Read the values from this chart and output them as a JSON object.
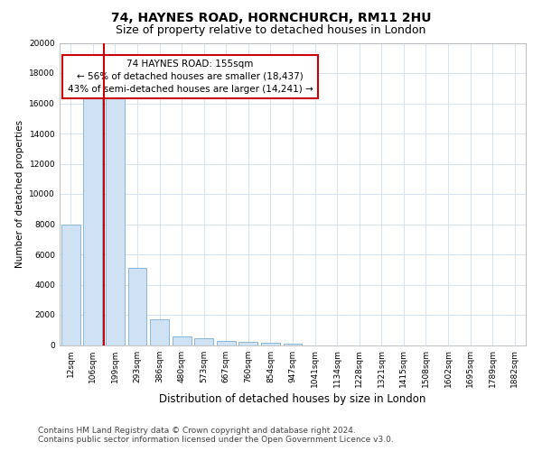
{
  "title1": "74, HAYNES ROAD, HORNCHURCH, RM11 2HU",
  "title2": "Size of property relative to detached houses in London",
  "xlabel": "Distribution of detached houses by size in London",
  "ylabel": "Number of detached properties",
  "categories": [
    "12sqm",
    "106sqm",
    "199sqm",
    "293sqm",
    "386sqm",
    "480sqm",
    "573sqm",
    "667sqm",
    "760sqm",
    "854sqm",
    "947sqm",
    "1041sqm",
    "1134sqm",
    "1228sqm",
    "1321sqm",
    "1415sqm",
    "1508sqm",
    "1602sqm",
    "1695sqm",
    "1789sqm",
    "1882sqm"
  ],
  "values": [
    8000,
    16300,
    16300,
    5100,
    1700,
    580,
    430,
    290,
    190,
    155,
    110,
    0,
    0,
    0,
    0,
    0,
    0,
    0,
    0,
    0,
    0
  ],
  "bar_color": "#cfe2f3",
  "bar_edge_color": "#7bafd4",
  "vline_color": "#cc0000",
  "vline_x": 1.5,
  "annotation_text": "74 HAYNES ROAD: 155sqm\n← 56% of detached houses are smaller (18,437)\n43% of semi-detached houses are larger (14,241) →",
  "annotation_box_facecolor": "#ffffff",
  "annotation_box_edgecolor": "#cc0000",
  "ylim": [
    0,
    20000
  ],
  "yticks": [
    0,
    2000,
    4000,
    6000,
    8000,
    10000,
    12000,
    14000,
    16000,
    18000,
    20000
  ],
  "grid_color": "#d5e3f0",
  "footnote": "Contains HM Land Registry data © Crown copyright and database right 2024.\nContains public sector information licensed under the Open Government Licence v3.0.",
  "title1_fontsize": 10,
  "title2_fontsize": 9,
  "xlabel_fontsize": 8.5,
  "ylabel_fontsize": 7.5,
  "tick_fontsize": 6.5,
  "annot_fontsize": 7.5,
  "footnote_fontsize": 6.5
}
